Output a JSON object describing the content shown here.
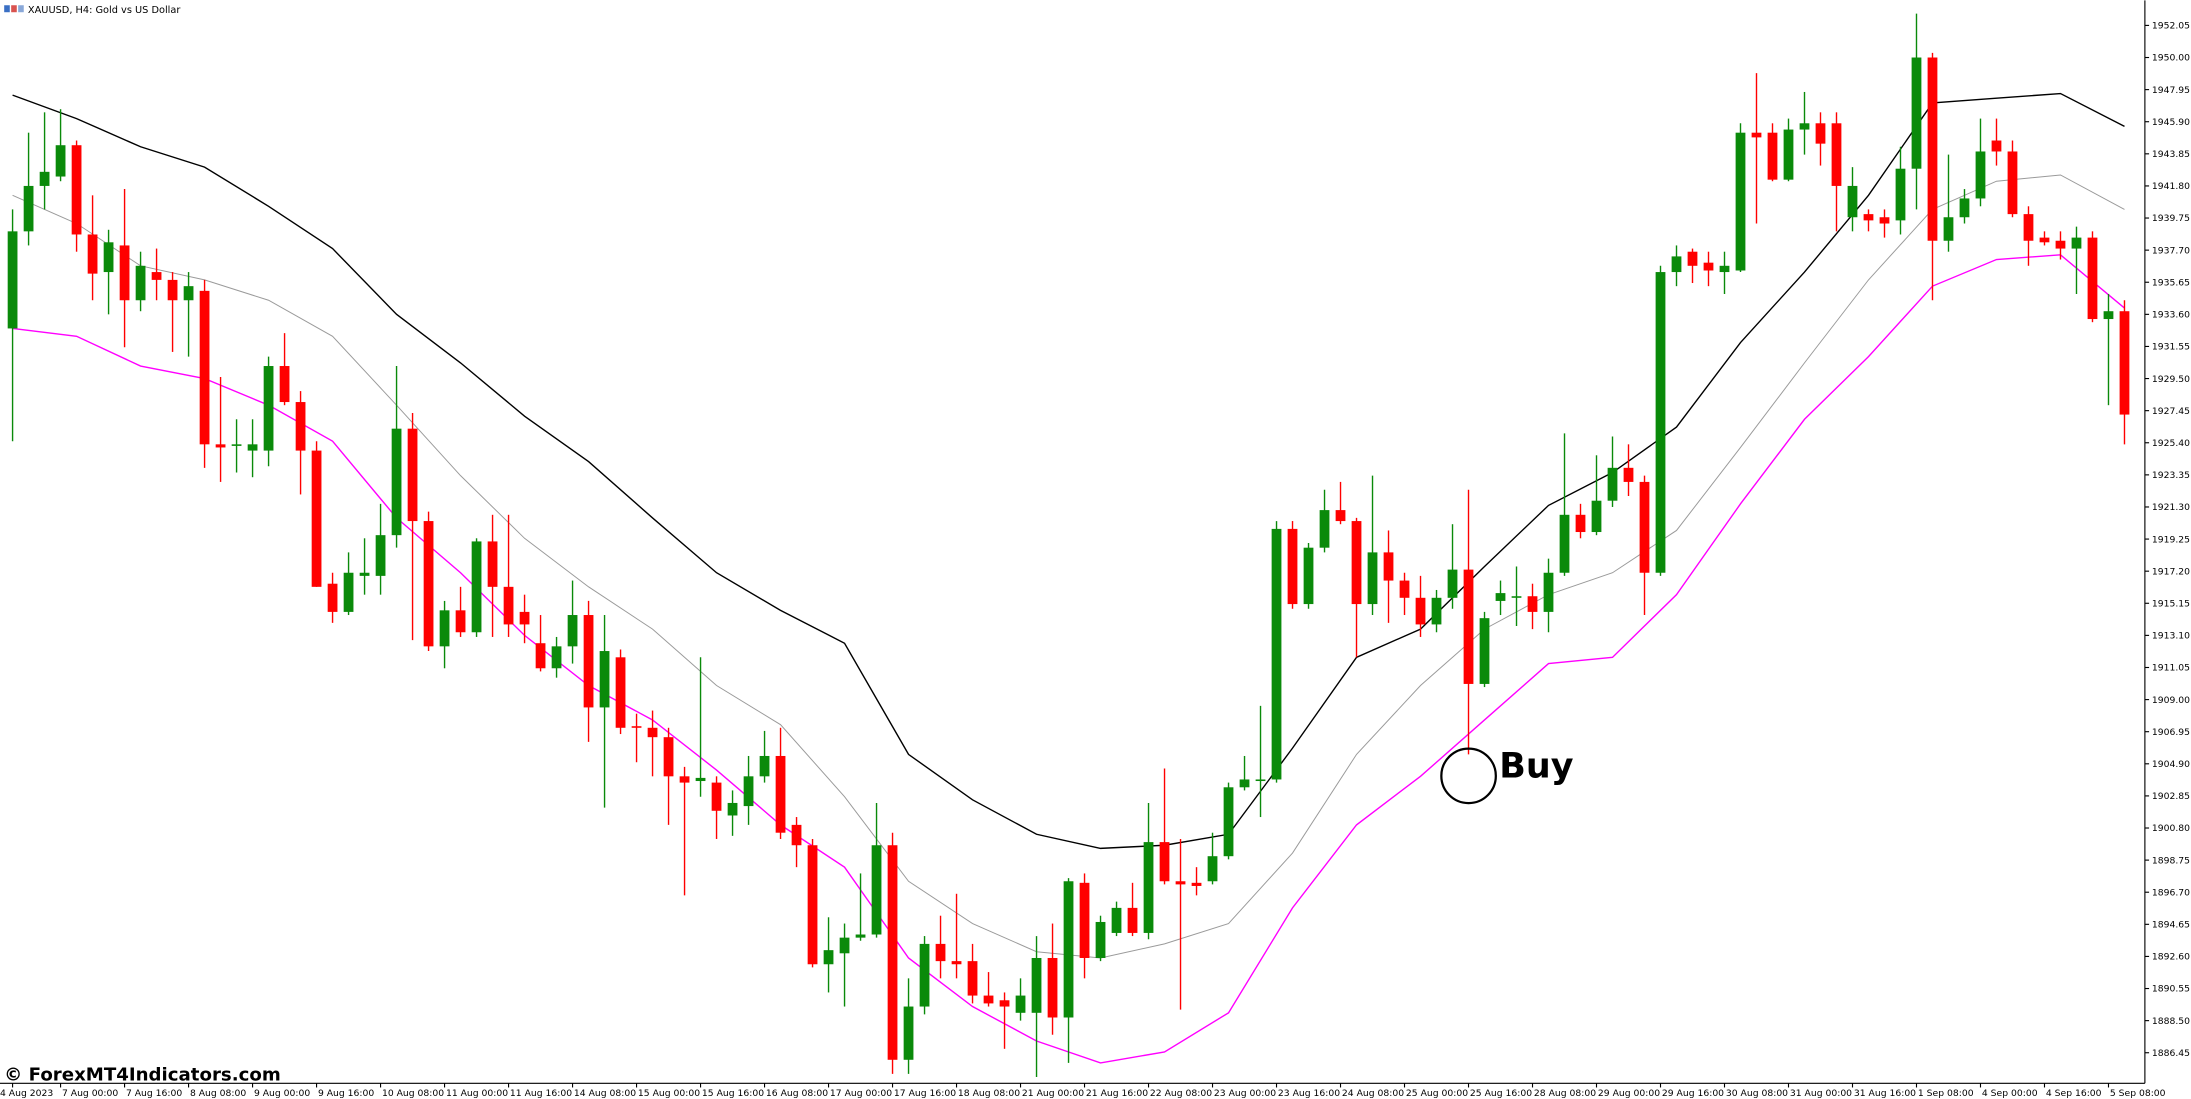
{
  "chart_data": {
    "type": "candlestick",
    "title": "XAUUSD, H4:  Gold vs US Dollar",
    "annotation": "Buy",
    "watermark": "© ForexMT4Indicators.com",
    "up_color": "#0a8a0a",
    "down_color": "#ff0000",
    "ylim": [
      1884.5,
      1953.65
    ],
    "yticks": [
      1952.05,
      {
        "value": 1950,
        "label": "1950.00"
      },
      1947.95,
      {
        "value": 1945.9,
        "label": "1945.90"
      },
      1943.85,
      {
        "value": 1941.8,
        "label": "1941.80"
      },
      1939.75,
      {
        "value": 1937.7,
        "label": "1937.70"
      },
      1935.65,
      {
        "value": 1933.6,
        "label": "1933.60"
      },
      1931.55,
      {
        "value": 1929.5,
        "label": "1929.50"
      },
      1927.45,
      {
        "value": 1925.4,
        "label": "1925.40"
      },
      1923.35,
      {
        "value": 1921.3,
        "label": "1921.30"
      },
      1919.25,
      {
        "value": 1917.2,
        "label": "1917.20"
      },
      1915.15,
      {
        "value": 1913.1,
        "label": "1913.10"
      },
      1911.05,
      {
        "value": 1909,
        "label": "1909.00"
      },
      1906.95,
      {
        "value": 1904.9,
        "label": "1904.90"
      },
      1902.85,
      {
        "value": 1900.8,
        "label": "1900.80"
      },
      1898.75,
      {
        "value": 1896.7,
        "label": "1896.70"
      },
      1894.65,
      {
        "value": 1892.6,
        "label": "1892.60"
      },
      1890.55,
      {
        "value": 1888.5,
        "label": "1888.50"
      },
      1886.45
    ],
    "categories": [
      "4 Aug 2023",
      null,
      null,
      "7 Aug 00:00",
      null,
      null,
      null,
      "7 Aug 16:00",
      null,
      null,
      null,
      "8 Aug 08:00",
      null,
      null,
      null,
      "9 Aug 00:00",
      null,
      null,
      null,
      "9 Aug 16:00",
      null,
      null,
      null,
      "10 Aug 08:00",
      null,
      null,
      null,
      "11 Aug 00:00",
      null,
      null,
      null,
      "11 Aug 16:00",
      null,
      null,
      null,
      "14 Aug 08:00",
      null,
      null,
      null,
      "15 Aug 00:00",
      null,
      null,
      null,
      "15 Aug 16:00",
      null,
      null,
      null,
      "16 Aug 08:00",
      null,
      null,
      null,
      "17 Aug 00:00",
      null,
      null,
      null,
      "17 Aug 16:00",
      null,
      null,
      null,
      "18 Aug 08:00",
      null,
      null,
      null,
      "21 Aug 00:00",
      null,
      null,
      null,
      "21 Aug 16:00",
      null,
      null,
      null,
      "22 Aug 08:00",
      null,
      null,
      null,
      "23 Aug 00:00",
      null,
      null,
      null,
      "23 Aug 16:00",
      null,
      null,
      null,
      "24 Aug 08:00",
      null,
      null,
      null,
      "25 Aug 00:00",
      null,
      null,
      null,
      "25 Aug 16:00",
      null,
      null,
      null,
      "28 Aug 08:00",
      null,
      null,
      null,
      "29 Aug 00:00",
      null,
      null,
      null,
      "29 Aug 16:00",
      null,
      null,
      null,
      "30 Aug 08:00",
      null,
      null,
      null,
      "31 Aug 00:00",
      null,
      null,
      null,
      "31 Aug 16:00",
      null,
      null,
      null,
      "1 Sep 08:00",
      null,
      null,
      null,
      "4 Sep 00:00",
      null,
      null,
      null,
      "4 Sep 16:00",
      null,
      null,
      null,
      "5 Sep 08:00",
      null
    ],
    "open": [
      1932.7,
      1938.9,
      1941.8,
      1942.4,
      1944.4,
      1938.7,
      1936.3,
      1938.0,
      1934.5,
      1936.3,
      1935.8,
      1934.5,
      1935.1,
      1925.3,
      1925.2,
      1924.9,
      1924.9,
      1930.3,
      1928.0,
      1924.9,
      1916.4,
      1914.6,
      1916.9,
      1916.9,
      1919.5,
      1926.3,
      1920.4,
      1912.4,
      1914.7,
      1913.3,
      1919.1,
      1916.2,
      1914.6,
      1912.6,
      1911.0,
      1912.4,
      1914.4,
      1908.5,
      1911.7,
      1907.3,
      1907.2,
      1906.6,
      1904.1,
      1903.8,
      1903.7,
      1901.6,
      1902.2,
      1904.1,
      1905.4,
      1901.0,
      1899.7,
      1892.1,
      1892.8,
      1893.8,
      1894.0,
      1899.7,
      1886.0,
      1889.4,
      1893.4,
      1892.3,
      1892.3,
      1890.1,
      1889.8,
      1889.0,
      1889.0,
      1892.5,
      1888.7,
      1897.3,
      1892.5,
      1894.1,
      1895.7,
      1894.1,
      1899.9,
      1897.4,
      1897.3,
      1897.4,
      1899.0,
      1903.4,
      1903.8,
      1903.9,
      1919.9,
      1915.1,
      1918.7,
      1921.1,
      1920.4,
      1915.1,
      1918.4,
      1916.6,
      1915.5,
      1913.8,
      1915.5,
      1917.3,
      1910.0,
      1915.3,
      1915.5,
      1915.6,
      1914.6,
      1917.1,
      1920.8,
      1919.7,
      1921.7,
      1923.8,
      1922.9,
      1917.1,
      1936.3,
      1937.6,
      1936.9,
      1936.3,
      1936.4,
      1945.2,
      1945.2,
      1942.2,
      1945.4,
      1945.8,
      1945.8,
      1939.8,
      1940.0,
      1939.8,
      1939.6,
      1942.9,
      1950.0,
      1938.3,
      1939.8,
      1941.0,
      1944.7,
      1944.0,
      1940.0,
      1938.5,
      1938.3,
      1937.8,
      1938.5,
      1933.3,
      1933.8
    ],
    "high": [
      1940.3,
      1945.2,
      1946.5,
      1946.7,
      1944.7,
      1941.2,
      1939.0,
      1941.6,
      1937.6,
      1937.8,
      1936.3,
      1936.3,
      1935.8,
      1929.6,
      1926.9,
      1926.9,
      1930.9,
      1932.4,
      1928.7,
      1925.5,
      1917.1,
      1918.4,
      1919.3,
      1921.5,
      1930.3,
      1927.3,
      1921.0,
      1915.3,
      1916.2,
      1919.3,
      1920.8,
      1920.8,
      1915.7,
      1914.4,
      1913.0,
      1916.6,
      1915.3,
      1914.4,
      1912.2,
      1908.1,
      1908.3,
      1907.2,
      1904.7,
      1911.7,
      1904.1,
      1903.2,
      1905.4,
      1907.0,
      1907.2,
      1901.5,
      1900.1,
      1895.1,
      1894.7,
      1897.9,
      1902.4,
      1900.5,
      1891.2,
      1893.9,
      1895.2,
      1896.6,
      1893.4,
      1891.6,
      1890.3,
      1891.2,
      1893.9,
      1894.7,
      1897.6,
      1897.9,
      1895.2,
      1896.1,
      1897.3,
      1902.4,
      1904.6,
      1900.1,
      1898.3,
      1900.5,
      1903.7,
      1905.4,
      1908.6,
      1920.4,
      1920.4,
      1919.0,
      1922.4,
      1922.9,
      1920.6,
      1923.3,
      1919.8,
      1917.1,
      1916.9,
      1916.0,
      1920.2,
      1922.4,
      1914.6,
      1916.6,
      1917.5,
      1916.4,
      1918.0,
      1926.0,
      1921.5,
      1924.6,
      1925.8,
      1925.3,
      1923.3,
      1936.7,
      1938.0,
      1937.8,
      1937.6,
      1937.6,
      1945.8,
      1949.0,
      1945.8,
      1946.1,
      1947.8,
      1946.5,
      1946.5,
      1943.0,
      1940.3,
      1940.3,
      1944.3,
      1952.8,
      1950.3,
      1943.8,
      1941.6,
      1946.1,
      1946.1,
      1944.7,
      1940.5,
      1938.9,
      1938.9,
      1939.2,
      1938.9,
      1934.9,
      1934.5
    ],
    "low": [
      1925.5,
      1938.0,
      1940.3,
      1942.1,
      1937.6,
      1934.5,
      1933.6,
      1931.5,
      1933.8,
      1934.5,
      1931.2,
      1930.9,
      1923.8,
      1922.9,
      1923.5,
      1923.2,
      1923.9,
      1927.8,
      1922.1,
      1916.2,
      1913.9,
      1914.4,
      1915.7,
      1915.7,
      1918.7,
      1912.8,
      1912.1,
      1911.0,
      1913.0,
      1913.0,
      1913.0,
      1913.0,
      1912.6,
      1910.8,
      1910.4,
      1911.3,
      1906.3,
      1902.1,
      1906.8,
      1905.0,
      1904.1,
      1901.0,
      1896.5,
      1902.8,
      1900.1,
      1900.3,
      1901.0,
      1903.7,
      1900.1,
      1898.3,
      1891.9,
      1890.3,
      1889.4,
      1893.6,
      1893.8,
      1885.1,
      1885.1,
      1888.9,
      1891.2,
      1891.2,
      1889.6,
      1889.4,
      1886.7,
      1888.5,
      1884.9,
      1887.6,
      1885.8,
      1891.2,
      1892.3,
      1893.9,
      1893.9,
      1893.7,
      1897.2,
      1889.2,
      1896.5,
      1897.2,
      1898.8,
      1903.2,
      1901.5,
      1903.7,
      1914.8,
      1914.8,
      1918.4,
      1920.2,
      1911.7,
      1914.4,
      1913.9,
      1914.4,
      1913.0,
      1913.3,
      1914.8,
      1905.5,
      1909.8,
      1914.4,
      1913.7,
      1913.5,
      1913.3,
      1916.9,
      1919.3,
      1919.5,
      1921.3,
      1922.0,
      1914.4,
      1916.9,
      1935.4,
      1935.6,
      1935.4,
      1934.9,
      1936.3,
      1939.4,
      1942.1,
      1942.1,
      1943.8,
      1943.1,
      1938.9,
      1938.9,
      1938.9,
      1938.5,
      1938.7,
      1940.3,
      1934.5,
      1937.6,
      1939.4,
      1940.5,
      1943.1,
      1939.8,
      1936.7,
      1938.0,
      1937.1,
      1934.9,
      1933.1,
      1927.8,
      1925.3
    ],
    "close": [
      1938.9,
      1941.8,
      1942.7,
      1944.4,
      1938.7,
      1936.2,
      1938.2,
      1934.5,
      1936.7,
      1935.8,
      1934.5,
      1935.4,
      1925.3,
      1925.1,
      1925.3,
      1925.3,
      1930.3,
      1928.0,
      1924.9,
      1916.2,
      1914.6,
      1917.1,
      1917.1,
      1919.5,
      1926.3,
      1920.4,
      1912.4,
      1914.7,
      1913.3,
      1919.1,
      1916.2,
      1913.8,
      1913.8,
      1911.0,
      1912.4,
      1914.4,
      1908.5,
      1912.1,
      1907.2,
      1907.2,
      1906.6,
      1904.1,
      1903.7,
      1904.0,
      1901.9,
      1902.4,
      1904.1,
      1905.4,
      1900.5,
      1899.7,
      1892.1,
      1893.0,
      1893.8,
      1894.0,
      1899.7,
      1886.0,
      1889.4,
      1893.4,
      1892.3,
      1892.1,
      1890.1,
      1889.6,
      1889.4,
      1890.1,
      1892.5,
      1888.7,
      1897.4,
      1892.5,
      1894.8,
      1895.7,
      1894.1,
      1899.9,
      1897.4,
      1897.2,
      1897.1,
      1899.0,
      1903.4,
      1903.9,
      1903.9,
      1919.9,
      1915.1,
      1918.7,
      1921.1,
      1920.4,
      1915.1,
      1918.4,
      1916.6,
      1915.5,
      1913.8,
      1915.5,
      1917.3,
      1910.0,
      1914.2,
      1915.8,
      1915.6,
      1914.6,
      1917.1,
      1920.8,
      1919.7,
      1921.7,
      1923.8,
      1922.9,
      1917.1,
      1936.3,
      1937.3,
      1936.7,
      1936.4,
      1936.7,
      1945.2,
      1944.9,
      1942.2,
      1945.4,
      1945.8,
      1944.5,
      1941.8,
      1941.8,
      1939.6,
      1939.4,
      1942.9,
      1950.0,
      1938.3,
      1939.8,
      1941.0,
      1944.0,
      1944.0,
      1940.0,
      1938.3,
      1938.2,
      1937.8,
      1938.5,
      1933.3,
      1933.8,
      1927.2
    ],
    "line_x": [
      0,
      4,
      8,
      12,
      16,
      20,
      24,
      28,
      32,
      36,
      40,
      44,
      48,
      52,
      56,
      60,
      64,
      68,
      72,
      76,
      80,
      84,
      88,
      92,
      96,
      100,
      104,
      108,
      112,
      116,
      120,
      124,
      128,
      132
    ],
    "lines": [
      {
        "color": "#000000",
        "values": [
          1947.6,
          1946.1,
          1944.3,
          1943.0,
          1940.5,
          1937.8,
          1933.6,
          1930.5,
          1927.1,
          1924.2,
          1920.6,
          1917.1,
          1914.7,
          1912.6,
          1905.5,
          1902.6,
          1900.4,
          1899.5,
          1899.7,
          1900.4,
          1905.9,
          1911.7,
          1913.5,
          1917.5,
          1921.4,
          1923.5,
          1926.4,
          1931.8,
          1936.3,
          1941.2,
          1947.1,
          1947.4,
          1947.7,
          1945.6
        ]
      },
      {
        "color": "#9a9a9a",
        "values": [
          1941.2,
          1939.4,
          1936.7,
          1935.8,
          1934.5,
          1932.2,
          1927.8,
          1923.3,
          1919.3,
          1916.2,
          1913.5,
          1909.9,
          1907.4,
          1902.8,
          1897.4,
          1894.7,
          1892.9,
          1892.5,
          1893.4,
          1894.7,
          1899.2,
          1905.5,
          1909.9,
          1913.5,
          1915.7,
          1917.1,
          1919.8,
          1925.1,
          1930.5,
          1935.8,
          1940.3,
          1942.1,
          1942.5,
          1940.3
        ]
      },
      {
        "color": "#ff00ff",
        "values": [
          1932.7,
          1932.2,
          1930.3,
          1929.5,
          1927.8,
          1925.5,
          1920.6,
          1917.1,
          1913.1,
          1909.9,
          1907.7,
          1904.5,
          1901.0,
          1898.3,
          1892.5,
          1889.4,
          1887.2,
          1885.8,
          1886.5,
          1889.0,
          1895.7,
          1901.0,
          1904.1,
          1907.7,
          1911.3,
          1911.7,
          1915.7,
          1921.5,
          1926.9,
          1930.9,
          1935.4,
          1937.1,
          1937.4,
          1934.0
        ]
      }
    ]
  }
}
